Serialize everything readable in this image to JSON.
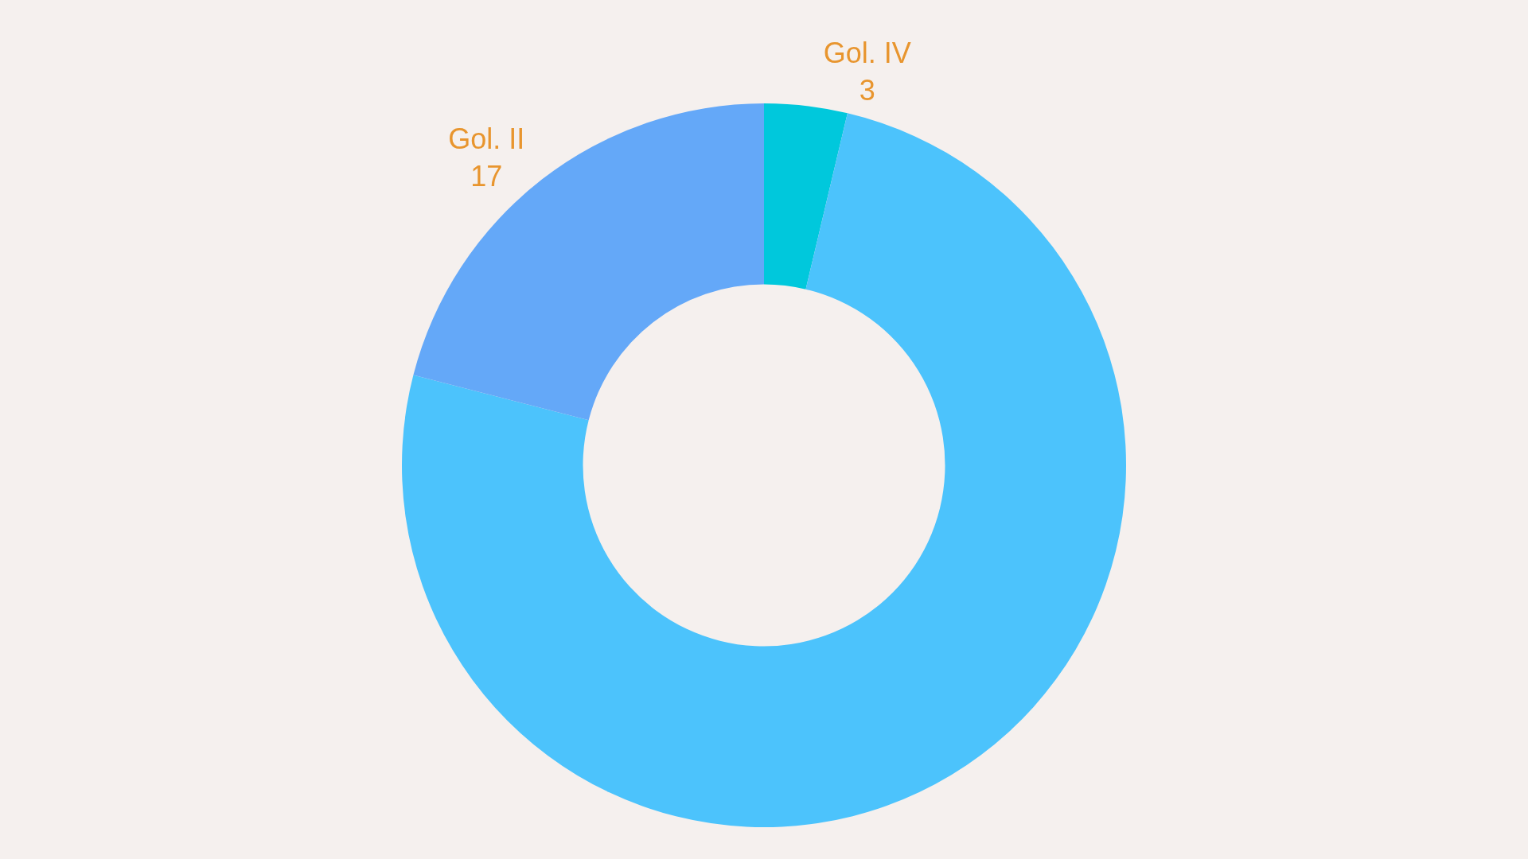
{
  "chart_data": {
    "type": "donut",
    "categories": [
      "Gol. IV",
      null,
      "Gol. II"
    ],
    "values": [
      3,
      61,
      17
    ],
    "value_labels": [
      "3",
      null,
      "17"
    ],
    "colors": [
      "#00c8dc",
      "#4cc3fc",
      "#64a8f8"
    ]
  }
}
